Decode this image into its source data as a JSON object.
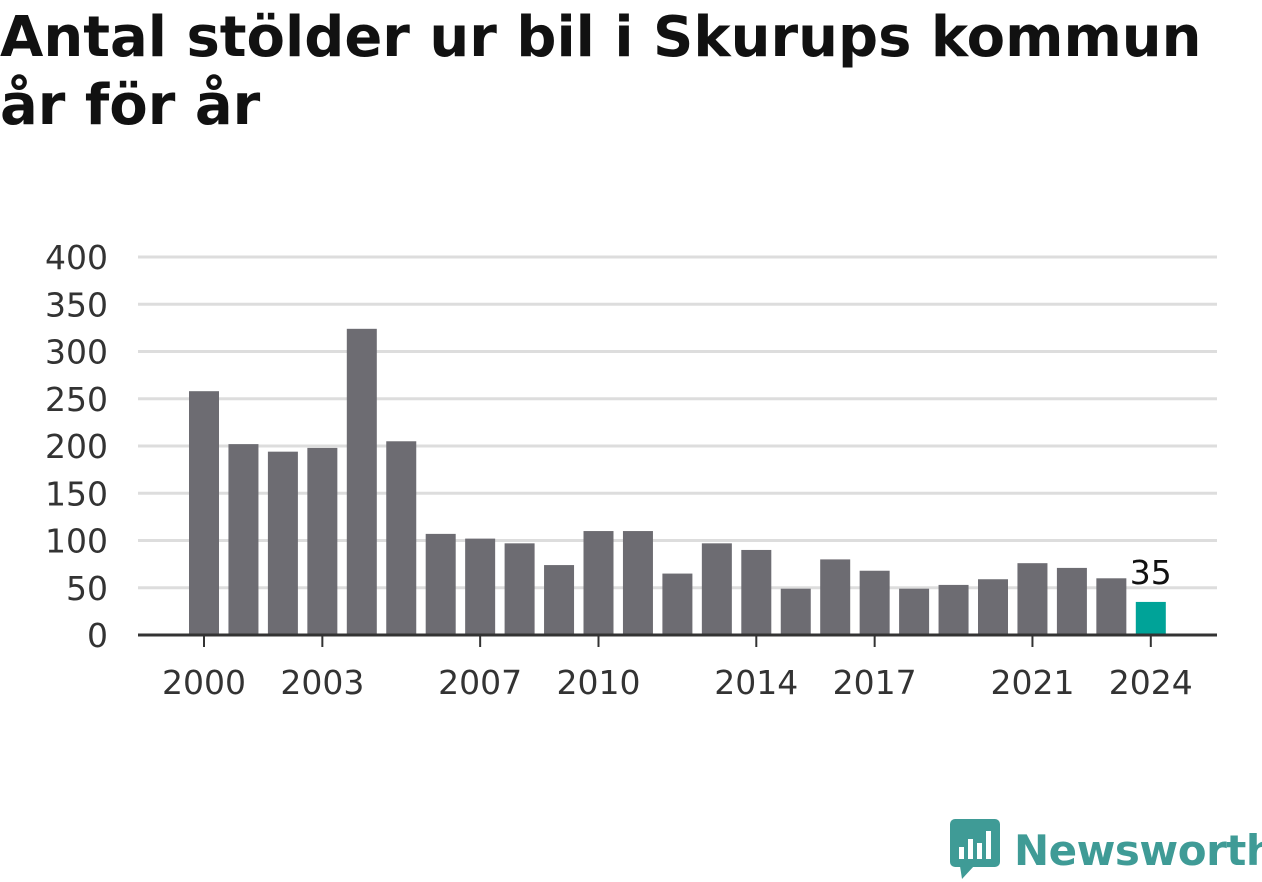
{
  "chart_data": {
    "type": "bar",
    "title": "Antal stölder ur bil i Skurups kommun år för år",
    "xlabel": "",
    "ylabel": "",
    "categories": [
      "2000",
      "2001",
      "2002",
      "2003",
      "2004",
      "2005",
      "2006",
      "2007",
      "2008",
      "2009",
      "2010",
      "2011",
      "2012",
      "2013",
      "2014",
      "2015",
      "2016",
      "2017",
      "2018",
      "2019",
      "2020",
      "2021",
      "2022",
      "2023",
      "2024"
    ],
    "values": [
      258,
      202,
      194,
      198,
      324,
      205,
      107,
      102,
      97,
      74,
      110,
      110,
      65,
      97,
      90,
      49,
      80,
      68,
      49,
      53,
      59,
      76,
      71,
      60,
      35
    ],
    "ylim": [
      0,
      400
    ],
    "yticks": [
      0,
      50,
      100,
      150,
      200,
      250,
      300,
      350,
      400
    ],
    "xtick_labels": [
      "2000",
      "2003",
      "2007",
      "2010",
      "2014",
      "2017",
      "2021",
      "2024"
    ],
    "highlight": {
      "category": "2024",
      "label": "35"
    },
    "grid": true,
    "legend": "none",
    "colors": {
      "bar": "#6d6c72",
      "highlight": "#00a398",
      "grid": "#dddddd",
      "axis": "#333333"
    }
  },
  "logo": {
    "text": "Newsworthy",
    "icon": "newsworthy-logo-icon",
    "color": "#3f9b96"
  }
}
